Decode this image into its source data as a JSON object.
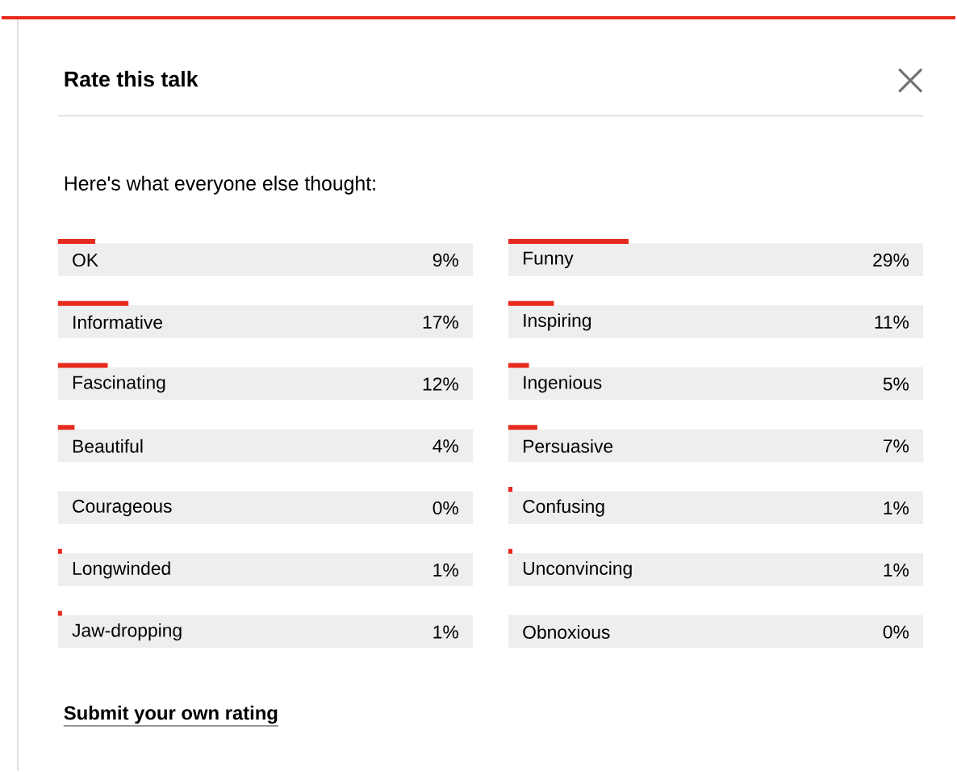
{
  "chart_data": [
    {
      "type": "bar",
      "orientation": "horizontal",
      "title": "Rate this talk",
      "subtitle": "Here's what everyone else thought:",
      "annotations": [
        "Submit your own rating"
      ],
      "categories": [
        "OK",
        "Informative",
        "Fascinating",
        "Beautiful",
        "Courageous",
        "Longwinded",
        "Jaw-dropping"
      ],
      "values": [
        9,
        17,
        12,
        4,
        0,
        1,
        1
      ],
      "value_labels": [
        "9%",
        "17%",
        "12%",
        "4%",
        "0%",
        "1%",
        "1%"
      ],
      "color": "#e62b1e",
      "xlim": [
        0,
        100
      ]
    },
    {
      "type": "bar",
      "orientation": "horizontal",
      "categories": [
        "Funny",
        "Inspiring",
        "Ingenious",
        "Persuasive",
        "Confusing",
        "Unconvincing",
        "Obnoxious"
      ],
      "values": [
        29,
        11,
        5,
        7,
        1,
        1,
        0
      ],
      "value_labels": [
        "29%",
        "11%",
        "5%",
        "7%",
        "1%",
        "1%",
        "0%"
      ],
      "color": "#e62b1e",
      "xlim": [
        0,
        100
      ]
    }
  ]
}
